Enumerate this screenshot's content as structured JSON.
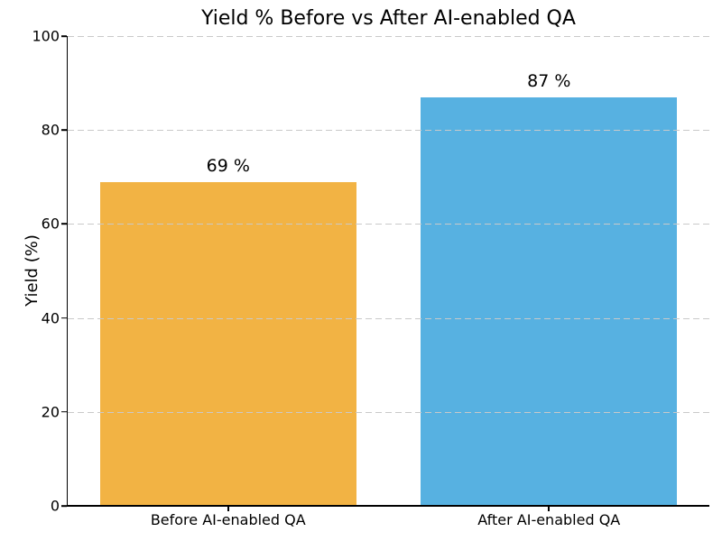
{
  "chart_data": {
    "type": "bar",
    "title": "Yield % Before vs After AI-enabled QA",
    "categories": [
      "Before AI-enabled QA",
      "After AI-enabled QA"
    ],
    "values": [
      69,
      87
    ],
    "bar_labels": [
      "69 %",
      "87 %"
    ],
    "bar_colors": [
      "#F2B344",
      "#57B1E1"
    ],
    "xlabel": "",
    "ylabel": "Yield (%)",
    "ylim": [
      0,
      100
    ],
    "yticks": [
      0,
      20,
      40,
      60,
      80,
      100
    ],
    "ytick_labels": [
      "0",
      "20",
      "40",
      "60",
      "80",
      "100"
    ],
    "grid": {
      "axis": "y",
      "style": "dashed",
      "color": "#C9C9C9",
      "drawn_above_bars": true
    },
    "legend_position": "none",
    "colors": {
      "background": "#FFFFFF",
      "spine": "#000000",
      "text": "#000000"
    }
  }
}
